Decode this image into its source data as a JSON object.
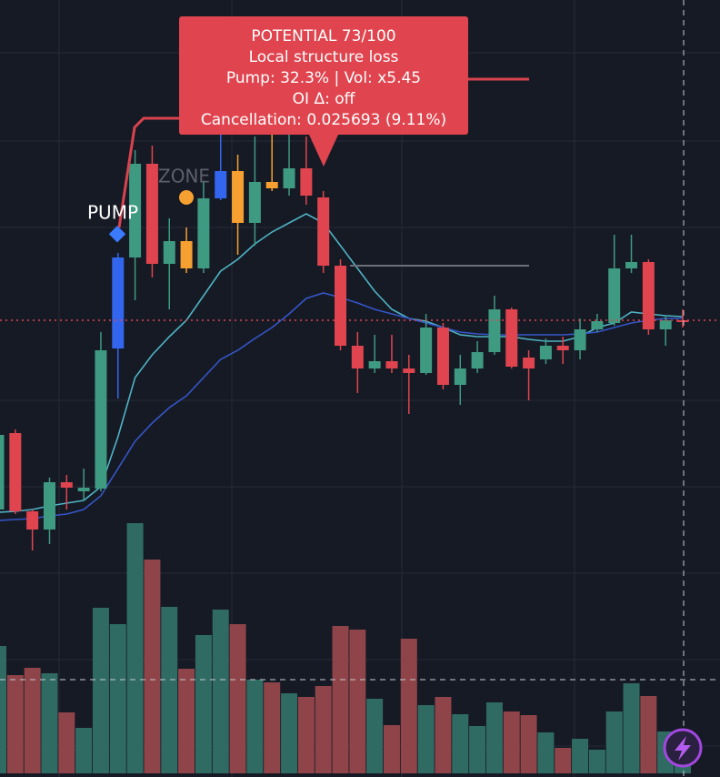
{
  "chart_data": {
    "type": "candlestick",
    "annotations": {
      "pump": "PUMP",
      "zone": "ZONE"
    },
    "tooltip": [
      "POTENTIAL  73/100",
      "Local structure loss",
      "Pump: 32.3% | Vol: x5.45",
      "OI Δ: off",
      "Cancellation: 0.025693 (9.11%)"
    ],
    "ylim": [
      0,
      660
    ],
    "volume_ylim": [
      0,
      850
    ],
    "open": [
      100,
      184,
      98,
      78,
      130,
      120,
      123,
      277,
      377,
      480,
      370,
      395,
      365,
      442,
      472,
      415,
      460,
      453,
      475,
      443,
      368,
      280,
      255,
      263,
      255,
      250,
      300,
      237,
      255,
      273,
      320,
      267,
      265,
      280,
      275,
      298,
      305,
      365,
      372,
      298,
      308
    ],
    "high": [
      190,
      188,
      100,
      135,
      138,
      145,
      295,
      382,
      495,
      500,
      420,
      410,
      460,
      560,
      490,
      510,
      520,
      515,
      510,
      450,
      375,
      295,
      292,
      292,
      270,
      315,
      305,
      270,
      285,
      335,
      322,
      275,
      288,
      290,
      310,
      315,
      402,
      402,
      375,
      312,
      320
    ],
    "low": [
      95,
      95,
      55,
      62,
      100,
      110,
      120,
      222,
      330,
      355,
      320,
      360,
      360,
      440,
      380,
      390,
      450,
      445,
      435,
      360,
      275,
      228,
      250,
      250,
      205,
      248,
      232,
      215,
      250,
      270,
      255,
      220,
      260,
      260,
      265,
      295,
      302,
      360,
      292,
      280,
      300
    ],
    "close": [
      182,
      98,
      78,
      130,
      124,
      124,
      275,
      377,
      480,
      370,
      395,
      365,
      442,
      472,
      415,
      460,
      453,
      475,
      445,
      368,
      280,
      255,
      263,
      255,
      250,
      300,
      237,
      255,
      273,
      320,
      257,
      255,
      280,
      275,
      298,
      307,
      365,
      372,
      298,
      308,
      308
    ],
    "candle_colors": [
      "#3f9a82",
      "#e0444e",
      "#e0444e",
      "#3f9a82",
      "#e0444e",
      "#3f9a82",
      "#3f9a82",
      "#3366ee",
      "#3f9a82",
      "#e0444e",
      "#3f9a82",
      "#f5a030",
      "#3f9a82",
      "#3366ee",
      "#f5a030",
      "#3f9a82",
      "#f5a030",
      "#3f9a82",
      "#e0444e",
      "#e0444e",
      "#e0444e",
      "#e0444e",
      "#3f9a82",
      "#e0444e",
      "#e0444e",
      "#3f9a82",
      "#e0444e",
      "#3f9a82",
      "#3f9a82",
      "#3f9a82",
      "#e0444e",
      "#e0444e",
      "#3f9a82",
      "#e0444e",
      "#3f9a82",
      "#3f9a82",
      "#3f9a82",
      "#3f9a82",
      "#e0444e",
      "#3f9a82",
      "#e0444e"
    ],
    "volume": [
      140,
      108,
      116,
      110,
      67,
      50,
      182,
      164,
      275,
      235,
      183,
      115,
      152,
      180,
      164,
      103,
      100,
      88,
      84,
      96,
      162,
      158,
      82,
      53,
      148,
      75,
      84,
      65,
      52,
      78,
      68,
      64,
      45,
      28,
      38,
      26,
      68,
      99,
      85,
      46,
      20
    ],
    "volume_colors": {
      "up": "#2f6b63",
      "down": "#8e4448"
    },
    "lines": [
      {
        "color": "#4fb3c4",
        "values": [
          97,
          98,
          100,
          104,
          107,
          110,
          125,
          180,
          245,
          270,
          290,
          308,
          335,
          362,
          375,
          392,
          405,
          415,
          425,
          415,
          390,
          365,
          340,
          320,
          310,
          307,
          300,
          292,
          290,
          290,
          290,
          287,
          285,
          285,
          290,
          300,
          305,
          317,
          315,
          313,
          312
        ]
      },
      {
        "color": "#3556c8",
        "values": [
          88,
          89,
          90,
          93,
          95,
          100,
          115,
          145,
          175,
          195,
          212,
          225,
          245,
          265,
          275,
          288,
          300,
          315,
          332,
          338,
          333,
          327,
          320,
          315,
          310,
          305,
          300,
          295,
          293,
          292,
          292,
          292,
          292,
          292,
          293,
          295,
          300,
          305,
          308,
          310,
          310
        ]
      }
    ]
  }
}
